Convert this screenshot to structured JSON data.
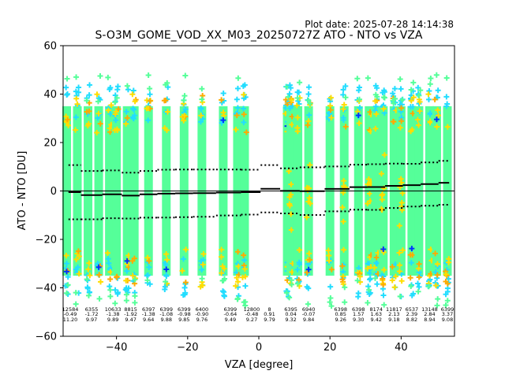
{
  "plot_date": "Plot date: 2025-07-28 14:14:38",
  "chart_data": {
    "type": "scatter",
    "title": "S-O3M_GOME_VOD_XX_M03_20250727Z ATO - NTO vs VZA",
    "xlabel": "VZA [degree]",
    "ylabel": "ATO - NTO [DU]",
    "xlim": [
      -55,
      55
    ],
    "ylim": [
      -60,
      60
    ],
    "xticks": [
      -40,
      -20,
      0,
      20,
      40
    ],
    "yticks": [
      -60,
      -40,
      -20,
      0,
      20,
      40,
      60
    ],
    "grid": false,
    "legend": "none",
    "colors": {
      "main": "#55ff99",
      "cyan": "#22ddff",
      "yellow": "#ffdd00",
      "blue": "#0033ff",
      "orange": "#ffaa00",
      "zero_line": "#000000"
    },
    "bins": [
      {
        "vza": -53,
        "count": "12584",
        "mean": "-0.49",
        "std": "11.20",
        "mean_val": -0.49,
        "std_val": 11.2
      },
      {
        "vza": -47,
        "count": "6355",
        "mean": "-1.72",
        "std": "9.97",
        "mean_val": -1.72,
        "std_val": 9.97
      },
      {
        "vza": -41,
        "count": "10633",
        "mean": "-1.38",
        "std": "9.89",
        "mean_val": -1.38,
        "std_val": 9.89
      },
      {
        "vza": -36,
        "count": "8815",
        "mean": "-1.92",
        "std": "9.47",
        "mean_val": -1.92,
        "std_val": 9.47
      },
      {
        "vza": -31,
        "count": "6397",
        "mean": "-1.38",
        "std": "9.64",
        "mean_val": -1.38,
        "std_val": 9.64
      },
      {
        "vza": -26,
        "count": "6399",
        "mean": "-1.08",
        "std": "9.88",
        "mean_val": -1.08,
        "std_val": 9.88
      },
      {
        "vza": -21,
        "count": "6399",
        "mean": "-0.98",
        "std": "9.85",
        "mean_val": -0.98,
        "std_val": 9.85
      },
      {
        "vza": -16,
        "count": "6400",
        "mean": "-0.90",
        "std": "9.76",
        "mean_val": -0.9,
        "std_val": 9.76
      },
      {
        "vza": -8,
        "count": "6399",
        "mean": "-0.64",
        "std": "9.49",
        "mean_val": -0.64,
        "std_val": 9.49
      },
      {
        "vza": -2,
        "count": "12800",
        "mean": "-0.48",
        "std": "9.27",
        "mean_val": -0.48,
        "std_val": 9.27
      },
      {
        "vza": 3,
        "count": "8",
        "mean": "0.91",
        "std": "9.79",
        "mean_val": 0.91,
        "std_val": 9.79
      },
      {
        "vza": 9,
        "count": "6395",
        "mean": "0.04",
        "std": "9.32",
        "mean_val": 0.04,
        "std_val": 9.32
      },
      {
        "vza": 14,
        "count": "6940",
        "mean": "-0.07",
        "std": "9.84",
        "mean_val": -0.07,
        "std_val": 9.84
      },
      {
        "vza": 23,
        "count": "6398",
        "mean": "0.85",
        "std": "9.26",
        "mean_val": 0.85,
        "std_val": 9.26
      },
      {
        "vza": 28,
        "count": "6398",
        "mean": "1.57",
        "std": "9.30",
        "mean_val": 1.57,
        "std_val": 9.3
      },
      {
        "vza": 33,
        "count": "8174",
        "mean": "1.63",
        "std": "9.42",
        "mean_val": 1.63,
        "std_val": 9.42
      },
      {
        "vza": 38,
        "count": "11817",
        "mean": "2.13",
        "std": "9.18",
        "mean_val": 2.13,
        "std_val": 9.18
      },
      {
        "vza": 43,
        "count": "6537",
        "mean": "2.39",
        "std": "8.82",
        "mean_val": 2.39,
        "std_val": 8.82
      },
      {
        "vza": 48,
        "count": "13148",
        "mean": "2.84",
        "std": "8.94",
        "mean_val": 2.84,
        "std_val": 8.94
      },
      {
        "vza": 53,
        "count": "6399",
        "mean": "3.37",
        "std": "9.08",
        "mean_val": 3.37,
        "std_val": 9.08
      }
    ],
    "columns": [
      -54,
      -51,
      -48,
      -45,
      -42,
      -40,
      -37,
      -35,
      -31,
      -26,
      -21,
      -16,
      -10,
      -6,
      -4,
      8,
      9,
      11,
      14,
      20,
      24,
      28,
      31,
      33,
      35,
      38,
      40,
      43,
      45,
      48,
      50,
      53
    ]
  }
}
